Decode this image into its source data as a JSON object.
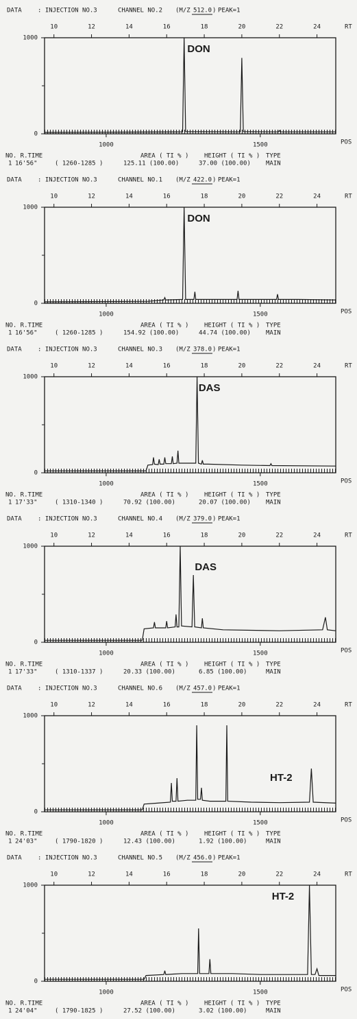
{
  "chart_data": [
    {
      "type": "line",
      "header": {
        "label": "DATA",
        "injection": ": INJECTION NO.3",
        "channel": "CHANNEL NO.2",
        "mz_open": "(M/Z",
        "mz": "512.0",
        "mz_close": ")",
        "peak": "PEAK=1"
      },
      "xlabel": "RT",
      "x2label": "POS",
      "xlim": [
        9.5,
        25
      ],
      "xticks": [
        10,
        12,
        14,
        16,
        18,
        20,
        22,
        24
      ],
      "x2lim": [
        800,
        1745
      ],
      "x2ticks": [
        1000,
        1500
      ],
      "ylim": [
        0,
        1000
      ],
      "yticks": [
        0,
        1000
      ],
      "minor_yticks": [
        500
      ],
      "annotation": {
        "text": "DON",
        "x": 17.1,
        "y": 880
      },
      "series": [
        {
          "color": "#1a1a1a",
          "x": [
            9.5,
            14.0,
            16.85,
            16.93,
            17.01,
            19.92,
            20.0,
            20.08,
            21.95,
            22.0,
            22.05,
            25.0
          ],
          "values": [
            15,
            18,
            20,
            1000,
            22,
            20,
            790,
            22,
            20,
            35,
            20,
            20
          ]
        }
      ],
      "footer": {
        "columns": [
          "NO. R.TIME",
          "AREA ( TI % )",
          "HEIGHT ( TI % )",
          "TYPE"
        ],
        "row": [
          "1",
          "16'56\"",
          "( 1260-1285 )",
          "125.11 (100.00)",
          "37.00 (100.00)",
          "MAIN"
        ]
      }
    },
    {
      "type": "line",
      "header": {
        "label": "DATA",
        "injection": ": INJECTION NO.3",
        "channel": "CHANNEL NO.1",
        "mz_open": "(M/Z",
        "mz": "422.0",
        "mz_close": ")",
        "peak": "PEAK=1"
      },
      "xlabel": "RT",
      "x2label": "POS",
      "xlim": [
        9.5,
        25
      ],
      "xticks": [
        10,
        12,
        14,
        16,
        18,
        20,
        22,
        24
      ],
      "x2lim": [
        800,
        1745
      ],
      "x2ticks": [
        1000,
        1500
      ],
      "ylim": [
        0,
        1000
      ],
      "yticks": [
        0,
        1000
      ],
      "minor_yticks": [
        500
      ],
      "annotation": {
        "text": "DON",
        "x": 17.1,
        "y": 880
      },
      "series": [
        {
          "color": "#1a1a1a",
          "x": [
            9.5,
            15.0,
            15.85,
            15.9,
            15.95,
            16.85,
            16.93,
            17.01,
            17.45,
            17.5,
            17.55,
            19.75,
            19.8,
            19.85,
            21.85,
            21.9,
            21.95,
            23.0,
            25.0
          ],
          "values": [
            15,
            20,
            35,
            60,
            35,
            40,
            1000,
            40,
            40,
            120,
            40,
            40,
            130,
            40,
            40,
            95,
            40,
            40,
            35
          ]
        }
      ],
      "footer": {
        "columns": [
          "NO. R.TIME",
          "AREA ( TI % )",
          "HEIGHT ( TI % )",
          "TYPE"
        ],
        "row": [
          "1",
          "16'56\"",
          "( 1260-1285 )",
          "154.92 (100.00)",
          "44.74 (100.00)",
          "MAIN"
        ]
      }
    },
    {
      "type": "line",
      "header": {
        "label": "DATA",
        "injection": ": INJECTION NO.3",
        "channel": "CHANNEL NO.3",
        "mz_open": "(M/Z",
        "mz": "378.0",
        "mz_close": ")",
        "peak": "PEAK=1"
      },
      "xlabel": "RT",
      "x2label": "POS",
      "xlim": [
        9.5,
        25
      ],
      "xticks": [
        10,
        12,
        14,
        16,
        18,
        20,
        22,
        24
      ],
      "x2lim": [
        800,
        1745
      ],
      "x2ticks": [
        1000,
        1500
      ],
      "ylim": [
        0,
        1000
      ],
      "yticks": [
        0,
        1000
      ],
      "minor_yticks": [
        500
      ],
      "annotation": {
        "text": "DAS",
        "x": 17.7,
        "y": 880
      },
      "series": [
        {
          "color": "#1a1a1a",
          "x": [
            9.5,
            14.9,
            15.0,
            15.25,
            15.3,
            15.35,
            15.55,
            15.6,
            15.65,
            15.85,
            15.9,
            15.95,
            16.25,
            16.3,
            16.35,
            16.55,
            16.6,
            16.65,
            17.55,
            17.62,
            17.69,
            17.85,
            17.9,
            17.95,
            18.2,
            20.0,
            21.5,
            21.55,
            21.6,
            25.0
          ],
          "values": [
            20,
            20,
            80,
            85,
            160,
            90,
            85,
            140,
            90,
            90,
            160,
            95,
            95,
            170,
            95,
            100,
            230,
            100,
            100,
            1000,
            100,
            90,
            130,
            90,
            90,
            80,
            75,
            95,
            75,
            70
          ]
        }
      ],
      "footer": {
        "columns": [
          "NO. R.TIME",
          "AREA ( TI % )",
          "HEIGHT ( TI % )",
          "TYPE"
        ],
        "row": [
          "1",
          "17'33\"",
          "( 1310-1340 )",
          "70.92 (100.00)",
          "20.07 (100.00)",
          "MAIN"
        ]
      }
    },
    {
      "type": "line",
      "header": {
        "label": "DATA",
        "injection": ": INJECTION NO.3",
        "channel": "CHANNEL NO.4",
        "mz_open": "(M/Z",
        "mz": "379.0",
        "mz_close": ")",
        "peak": "PEAK=1"
      },
      "xlabel": "RT",
      "x2label": "POS",
      "xlim": [
        9.5,
        25
      ],
      "xticks": [
        10,
        12,
        14,
        16,
        18,
        20,
        22,
        24
      ],
      "x2lim": [
        800,
        1745
      ],
      "x2ticks": [
        1000,
        1500
      ],
      "ylim": [
        0,
        1000
      ],
      "yticks": [
        0,
        1000
      ],
      "minor_yticks": [
        500
      ],
      "annotation": {
        "text": "DAS",
        "x": 17.5,
        "y": 780
      },
      "series": [
        {
          "color": "#1a1a1a",
          "x": [
            9.5,
            14.7,
            14.8,
            15.3,
            15.35,
            15.4,
            15.95,
            16.0,
            16.05,
            16.45,
            16.5,
            16.55,
            16.65,
            16.72,
            16.79,
            17.35,
            17.42,
            17.49,
            17.85,
            17.9,
            17.95,
            19.0,
            22.0,
            24.3,
            24.45,
            24.55,
            25.0
          ],
          "values": [
            20,
            20,
            140,
            150,
            210,
            150,
            150,
            220,
            150,
            160,
            290,
            160,
            160,
            1000,
            170,
            160,
            700,
            160,
            150,
            250,
            150,
            130,
            120,
            130,
            260,
            130,
            120
          ]
        }
      ],
      "footer": {
        "columns": [
          "NO. R.TIME",
          "AREA ( TI % )",
          "HEIGHT ( TI % )",
          "TYPE"
        ],
        "row": [
          "1",
          "17'33\"",
          "( 1310-1337 )",
          "20.33 (100.00)",
          "6.85 (100.00)",
          "MAIN"
        ]
      }
    },
    {
      "type": "line",
      "header": {
        "label": "DATA",
        "injection": ": INJECTION NO.3",
        "channel": "CHANNEL NO.6",
        "mz_open": "(M/Z",
        "mz": "457.0",
        "mz_close": ")",
        "peak": "PEAK=1"
      },
      "xlabel": "RT",
      "x2label": "POS",
      "xlim": [
        9.5,
        25
      ],
      "xticks": [
        10,
        12,
        14,
        16,
        18,
        20,
        22,
        24
      ],
      "x2lim": [
        800,
        1745
      ],
      "x2ticks": [
        1000,
        1500
      ],
      "ylim": [
        0,
        1000
      ],
      "yticks": [
        0,
        1000
      ],
      "minor_yticks": [
        500
      ],
      "annotation": {
        "text": "HT-2",
        "x": 21.5,
        "y": 350
      },
      "series": [
        {
          "color": "#1a1a1a",
          "x": [
            9.5,
            14.7,
            14.8,
            15.5,
            16.2,
            16.25,
            16.3,
            16.5,
            16.55,
            16.6,
            17.1,
            17.55,
            17.6,
            17.65,
            17.8,
            17.85,
            17.9,
            18.3,
            19.15,
            19.2,
            19.25,
            20.5,
            22.0,
            23.6,
            23.7,
            23.8,
            25.0
          ],
          "values": [
            20,
            20,
            80,
            90,
            100,
            300,
            110,
            110,
            350,
            110,
            120,
            120,
            900,
            130,
            130,
            250,
            120,
            110,
            110,
            900,
            110,
            100,
            95,
            100,
            450,
            100,
            90
          ]
        }
      ],
      "footer": {
        "columns": [
          "NO. R.TIME",
          "AREA ( TI % )",
          "HEIGHT ( TI % )",
          "TYPE"
        ],
        "row": [
          "1",
          "24'03\"",
          "( 1790-1820 )",
          "12.43 (100.00)",
          "1.92 (100.00)",
          "MAIN"
        ]
      }
    },
    {
      "type": "line",
      "header": {
        "label": "DATA",
        "injection": ": INJECTION NO.3",
        "channel": "CHANNEL NO.5",
        "mz_open": "(M/Z",
        "mz": "456.0",
        "mz_close": ")",
        "peak": "PEAK=1"
      },
      "xlabel": "RT",
      "x2label": "POS",
      "xlim": [
        9.5,
        25
      ],
      "xticks": [
        10,
        12,
        14,
        16,
        18,
        20,
        22,
        24
      ],
      "x2lim": [
        800,
        1745
      ],
      "x2ticks": [
        1000,
        1500
      ],
      "ylim": [
        0,
        1000
      ],
      "yticks": [
        0,
        1000
      ],
      "minor_yticks": [
        500
      ],
      "annotation": {
        "text": "HT-2",
        "x": 21.6,
        "y": 880
      },
      "series": [
        {
          "color": "#1a1a1a",
          "x": [
            9.5,
            14.8,
            14.9,
            15.85,
            15.9,
            15.95,
            16.8,
            17.65,
            17.7,
            17.75,
            18.25,
            18.3,
            18.35,
            19.5,
            21.0,
            23.5,
            23.6,
            23.7,
            23.9,
            24.0,
            24.1,
            25.0
          ],
          "values": [
            20,
            20,
            60,
            70,
            110,
            70,
            80,
            80,
            550,
            80,
            80,
            230,
            80,
            80,
            70,
            70,
            1000,
            70,
            70,
            130,
            60,
            60
          ]
        }
      ],
      "footer": {
        "columns": [
          "NO. R.TIME",
          "AREA ( TI % )",
          "HEIGHT ( TI % )",
          "TYPE"
        ],
        "row": [
          "1",
          "24'04\"",
          "( 1790-1825 )",
          "27.52 (100.00)",
          "3.02 (100.00)",
          "MAIN"
        ]
      }
    }
  ]
}
